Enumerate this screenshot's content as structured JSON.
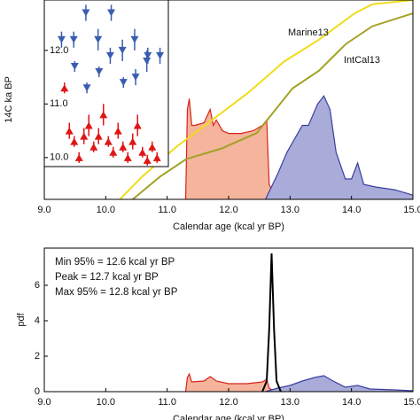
{
  "chart_data": [
    {
      "type": "line",
      "x_label": "Calendar age (kcal yr BP)",
      "y_label": "14C ka BP",
      "xlim": [
        9,
        15
      ],
      "xticks": [
        {
          "value": 9,
          "label": "9.0"
        },
        {
          "value": 10,
          "label": "10.0"
        },
        {
          "value": 11,
          "label": "11.0"
        },
        {
          "value": 12,
          "label": "12.0"
        },
        {
          "value": 13,
          "label": "13.0"
        },
        {
          "value": 14,
          "label": "14.0"
        },
        {
          "value": 15,
          "label": "15.0"
        }
      ],
      "ylim": [
        9.22,
        12.94
      ],
      "yticks": [
        {
          "value": 10,
          "label": "10.0"
        },
        {
          "value": 11,
          "label": "11.0"
        },
        {
          "value": 12,
          "label": "12.0"
        }
      ],
      "series": [
        {
          "kind": "area",
          "color": "#d9231c",
          "fill": "#f5b49c",
          "x": [
            11.3,
            11.33,
            11.36,
            11.4,
            11.45,
            11.6,
            11.7,
            11.75,
            11.8,
            11.9,
            12.0,
            12.2,
            12.4,
            12.55,
            12.62,
            12.66,
            12.7,
            12.9
          ],
          "values": [
            9.22,
            10.9,
            11.1,
            10.6,
            10.6,
            10.65,
            10.9,
            10.6,
            10.7,
            10.5,
            10.45,
            10.45,
            10.5,
            10.6,
            10.7,
            9.5,
            9.4,
            9.22
          ]
        },
        {
          "kind": "area",
          "color": "#3a3fa0",
          "fill": "#a9acd8",
          "x": [
            12.6,
            12.8,
            12.95,
            13.1,
            13.2,
            13.3,
            13.45,
            13.55,
            13.65,
            13.75,
            13.9,
            14.0,
            14.1,
            14.2,
            14.4,
            14.7,
            15.0
          ],
          "values": [
            9.22,
            9.7,
            10.1,
            10.4,
            10.6,
            10.6,
            11.0,
            11.15,
            10.9,
            10.1,
            9.6,
            9.6,
            9.9,
            9.5,
            9.45,
            9.4,
            9.3
          ]
        },
        {
          "kind": "line",
          "name": "Marine13",
          "color": "#f0dc1a",
          "x": [
            10.23,
            10.59,
            11.16,
            11.74,
            12.32,
            12.9,
            13.47,
            14.05,
            14.34,
            15.0
          ],
          "values": [
            9.22,
            9.64,
            10.21,
            10.71,
            11.21,
            11.79,
            12.2,
            12.69,
            12.86,
            12.94
          ]
        },
        {
          "kind": "line",
          "name": "IntCal13",
          "color": "#a3a226",
          "x": [
            10.44,
            10.88,
            11.31,
            11.89,
            12.46,
            13.04,
            13.47,
            13.91,
            14.34,
            15.0
          ],
          "values": [
            9.22,
            9.64,
            9.97,
            10.17,
            10.46,
            11.29,
            11.62,
            12.12,
            12.45,
            12.69
          ]
        }
      ],
      "inset": {
        "series": [
          {
            "marker": "down",
            "color": "#3a5db0",
            "values": [
              12.2,
              11.7,
              12.2,
              11.3,
              12.7,
              11.6,
              12.2,
              12.7,
              11.9,
              11.4,
              12.0,
              11.5,
              12.2,
              11.9,
              11.8,
              11.9
            ],
            "errors": [
              0.15,
              0.1,
              0.15,
              0.1,
              0.15,
              0.1,
              0.2,
              0.15,
              0.15,
              0.1,
              0.2,
              0.15,
              0.2,
              0.15,
              0.2,
              0.15
            ]
          },
          {
            "marker": "up",
            "color": "#e01515",
            "values": [
              11.3,
              10.5,
              10.3,
              10.0,
              10.4,
              10.6,
              10.2,
              10.4,
              10.8,
              10.3,
              10.1,
              10.5,
              10.2,
              10.0,
              10.3,
              10.6,
              10.1,
              9.95,
              10.2,
              10.0
            ],
            "errors": [
              0.1,
              0.15,
              0.1,
              0.1,
              0.15,
              0.2,
              0.1,
              0.15,
              0.2,
              0.1,
              0.1,
              0.15,
              0.1,
              0.1,
              0.15,
              0.2,
              0.1,
              0.1,
              0.1,
              0.1
            ]
          }
        ]
      }
    },
    {
      "type": "line",
      "x_label": "Calendar age (kcal yr BP)",
      "y_label": "pdf",
      "xlim": [
        9,
        15
      ],
      "xticks": [
        {
          "value": 9,
          "label": "9.0"
        },
        {
          "value": 10,
          "label": "10.0"
        },
        {
          "value": 11,
          "label": "11.0"
        },
        {
          "value": 12,
          "label": "12.0"
        },
        {
          "value": 13,
          "label": "13.0"
        },
        {
          "value": 14,
          "label": "14.0"
        },
        {
          "value": 15,
          "label": "15.0"
        }
      ],
      "ylim": [
        0,
        8.1
      ],
      "yticks": [
        0,
        2,
        4,
        6
      ],
      "annotations": [
        "Min 95% = 12.6  kcal yr BP",
        "Peak       = 12.7  kcal yr BP",
        "Max 95% = 12.8  kcal yr BP"
      ],
      "series": [
        {
          "kind": "area",
          "color": "#d9231c",
          "fill": "#f5b49c",
          "x": [
            11.3,
            11.33,
            11.36,
            11.4,
            11.6,
            11.7,
            11.8,
            12.0,
            12.3,
            12.55,
            12.62,
            12.66,
            12.75
          ],
          "values": [
            0,
            0.8,
            1.0,
            0.55,
            0.6,
            0.85,
            0.6,
            0.45,
            0.45,
            0.55,
            0.7,
            0.2,
            0
          ]
        },
        {
          "kind": "area",
          "color": "#3a3fa0",
          "fill": "#a9acd8",
          "x": [
            12.6,
            12.8,
            13.0,
            13.2,
            13.4,
            13.55,
            13.7,
            13.9,
            14.1,
            14.3,
            14.7,
            15.0
          ],
          "values": [
            0,
            0.2,
            0.35,
            0.6,
            0.8,
            0.9,
            0.6,
            0.25,
            0.35,
            0.15,
            0.1,
            0.05
          ]
        },
        {
          "kind": "line",
          "color": "#000000",
          "x": [
            12.55,
            12.62,
            12.66,
            12.7,
            12.74,
            12.78,
            12.85
          ],
          "values": [
            0,
            0.6,
            3.5,
            7.8,
            3.5,
            0.6,
            0
          ]
        }
      ]
    }
  ]
}
